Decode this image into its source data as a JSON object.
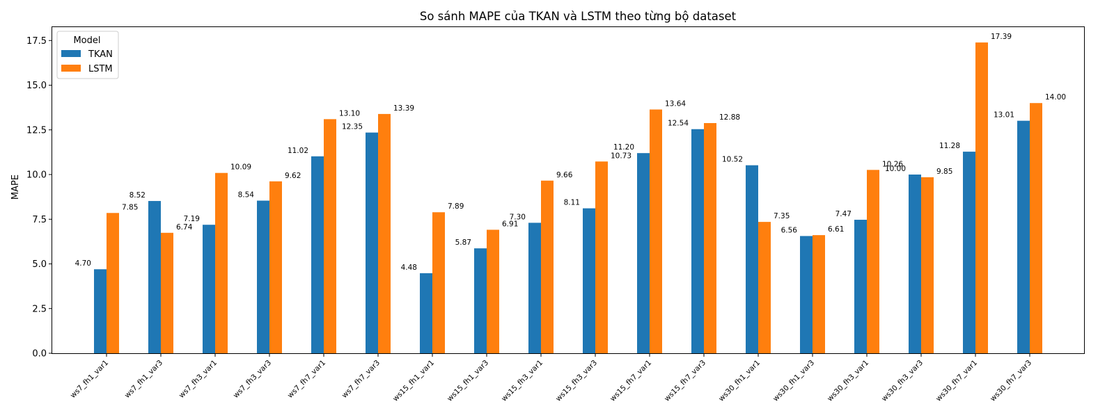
{
  "chart_data": {
    "type": "bar",
    "title": "So sánh MAPE của TKAN và LSTM theo từng bộ dataset",
    "xlabel": "",
    "ylabel": "MAPE",
    "ylim": [
      0,
      18.25
    ],
    "yticks": [
      "0.0",
      "2.5",
      "5.0",
      "7.5",
      "10.0",
      "12.5",
      "15.0",
      "17.5"
    ],
    "categories": [
      "ws7_fh1_var1",
      "ws7_fh1_var3",
      "ws7_fh3_var1",
      "ws7_fh3_var3",
      "ws7_fh7_var1",
      "ws7_fh7_var3",
      "ws15_fh1_var1",
      "ws15_fh1_var3",
      "ws15_fh3_var1",
      "ws15_fh3_var3",
      "ws15_fh7_var1",
      "ws15_fh7_var3",
      "ws30_fh1_var1",
      "ws30_fh1_var3",
      "ws30_fh3_var1",
      "ws30_fh3_var3",
      "ws30_fh7_var1",
      "ws30_fh7_var3"
    ],
    "series": [
      {
        "name": "TKAN",
        "color": "#1f77b4",
        "values": [
          4.7,
          8.52,
          7.19,
          8.54,
          11.02,
          12.35,
          4.48,
          5.87,
          7.3,
          8.11,
          11.2,
          12.54,
          10.52,
          6.56,
          7.47,
          10.0,
          11.28,
          13.01
        ]
      },
      {
        "name": "LSTM",
        "color": "#ff7f0e",
        "values": [
          7.85,
          6.74,
          10.09,
          9.62,
          13.1,
          13.39,
          7.89,
          6.91,
          9.66,
          10.73,
          13.64,
          12.88,
          7.35,
          6.61,
          10.26,
          9.85,
          17.39,
          14.0
        ]
      }
    ],
    "legend": {
      "title": "Model",
      "position": "top-left"
    },
    "grid": false
  }
}
